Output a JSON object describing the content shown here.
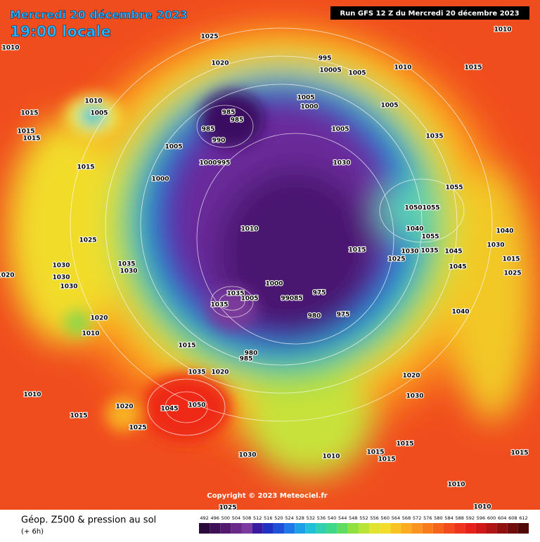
{
  "header": {
    "date": "Mercredi 20 décembre 2023",
    "local_time": "19:00 locale",
    "run": "Run GFS 12 Z du Mercredi 20 décembre 2023"
  },
  "footer": {
    "copyright": "Copyright © 2023 Meteociel.fr",
    "product": "Géop. Z500 & pression au sol",
    "lead": "(+ 6h)"
  },
  "pressure_labels": [
    1010,
    1010,
    1025,
    995,
    10005,
    1005,
    1010,
    1015,
    1020,
    1010,
    1005,
    1015,
    1005,
    1000,
    985,
    985,
    1005,
    985,
    1005,
    1035,
    990,
    1015,
    1015,
    1005,
    1000,
    995,
    1030,
    1015,
    1000,
    1055,
    1050,
    1055,
    1010,
    1040,
    1040,
    1055,
    1025,
    1030,
    1015,
    1030,
    1035,
    1045,
    1035,
    1030,
    1030,
    1025,
    1045,
    1030,
    1015,
    1025,
    1020,
    1030,
    1000,
    1035,
    975,
    1005,
    99085,
    975,
    980,
    1035,
    1040,
    1020,
    1010,
    1015,
    980,
    985,
    1020,
    1020,
    1035,
    1010,
    1030,
    1050,
    1045,
    1020,
    1015,
    1025,
    1015,
    1030,
    1010,
    1015,
    1015,
    1015,
    1010,
    1025,
    1010
  ],
  "color_scale": {
    "values": [
      492,
      496,
      500,
      504,
      508,
      512,
      516,
      520,
      524,
      528,
      532,
      536,
      540,
      544,
      548,
      552,
      556,
      560,
      564,
      568,
      572,
      576,
      580,
      584,
      588,
      592,
      596,
      600,
      604,
      608,
      612
    ],
    "colors": [
      "#2a0a3a",
      "#3e1056",
      "#541a70",
      "#6a2a8a",
      "#7a3aa0",
      "#3a1aa0",
      "#2030c0",
      "#1e50d8",
      "#1e78e8",
      "#1ea0e8",
      "#20c0d8",
      "#30d0b0",
      "#40d888",
      "#60dc60",
      "#90e040",
      "#b8e438",
      "#e0e430",
      "#f4dc2a",
      "#f8c424",
      "#fcac20",
      "#fa9420",
      "#f87c1c",
      "#f6641c",
      "#f24c1e",
      "#ee341c",
      "#e8201a",
      "#d01818",
      "#b01414",
      "#901010",
      "#700c0c",
      "#500808"
    ]
  }
}
